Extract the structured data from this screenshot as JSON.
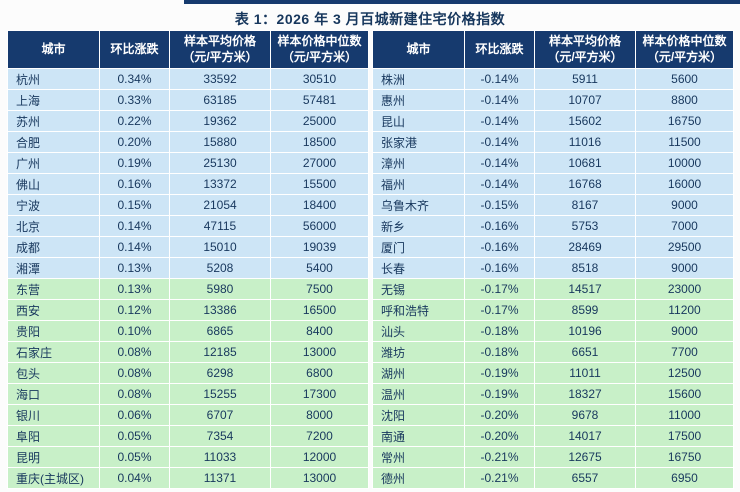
{
  "title": "表 1：2026 年 3 月百城新建住宅价格指数",
  "columns": {
    "city": "城市",
    "change": "环比涨跌",
    "avg_line1": "样本平均价格",
    "median_line1": "样本价格中位数",
    "unit": "（元/平方米）"
  },
  "left_rows": [
    {
      "city": "杭州",
      "change": "0.34%",
      "avg": "33592",
      "median": "30510"
    },
    {
      "city": "上海",
      "change": "0.33%",
      "avg": "63185",
      "median": "57481"
    },
    {
      "city": "苏州",
      "change": "0.22%",
      "avg": "19362",
      "median": "25000"
    },
    {
      "city": "合肥",
      "change": "0.20%",
      "avg": "15880",
      "median": "18500"
    },
    {
      "city": "广州",
      "change": "0.19%",
      "avg": "25130",
      "median": "27000"
    },
    {
      "city": "佛山",
      "change": "0.16%",
      "avg": "13372",
      "median": "15500"
    },
    {
      "city": "宁波",
      "change": "0.15%",
      "avg": "21054",
      "median": "18400"
    },
    {
      "city": "北京",
      "change": "0.14%",
      "avg": "47115",
      "median": "56000"
    },
    {
      "city": "成都",
      "change": "0.14%",
      "avg": "15010",
      "median": "19039"
    },
    {
      "city": "湘潭",
      "change": "0.13%",
      "avg": "5208",
      "median": "5400"
    },
    {
      "city": "东营",
      "change": "0.13%",
      "avg": "5980",
      "median": "7500"
    },
    {
      "city": "西安",
      "change": "0.12%",
      "avg": "13386",
      "median": "16500"
    },
    {
      "city": "贵阳",
      "change": "0.10%",
      "avg": "6865",
      "median": "8400"
    },
    {
      "city": "石家庄",
      "change": "0.08%",
      "avg": "12185",
      "median": "13000"
    },
    {
      "city": "包头",
      "change": "0.08%",
      "avg": "6298",
      "median": "6800"
    },
    {
      "city": "海口",
      "change": "0.08%",
      "avg": "15255",
      "median": "17300"
    },
    {
      "city": "银川",
      "change": "0.06%",
      "avg": "6707",
      "median": "8000"
    },
    {
      "city": "阜阳",
      "change": "0.05%",
      "avg": "7354",
      "median": "7200"
    },
    {
      "city": "昆明",
      "change": "0.05%",
      "avg": "11033",
      "median": "12000"
    },
    {
      "city": "重庆(主城区)",
      "change": "0.04%",
      "avg": "11371",
      "median": "13000"
    }
  ],
  "right_rows": [
    {
      "city": "株洲",
      "change": "-0.14%",
      "avg": "5911",
      "median": "5600"
    },
    {
      "city": "惠州",
      "change": "-0.14%",
      "avg": "10707",
      "median": "8800"
    },
    {
      "city": "昆山",
      "change": "-0.14%",
      "avg": "15602",
      "median": "16750"
    },
    {
      "city": "张家港",
      "change": "-0.14%",
      "avg": "11016",
      "median": "11500"
    },
    {
      "city": "漳州",
      "change": "-0.14%",
      "avg": "10681",
      "median": "10000"
    },
    {
      "city": "福州",
      "change": "-0.14%",
      "avg": "16768",
      "median": "16000"
    },
    {
      "city": "乌鲁木齐",
      "change": "-0.15%",
      "avg": "8167",
      "median": "9000"
    },
    {
      "city": "新乡",
      "change": "-0.16%",
      "avg": "5753",
      "median": "7000"
    },
    {
      "city": "厦门",
      "change": "-0.16%",
      "avg": "28469",
      "median": "29500"
    },
    {
      "city": "长春",
      "change": "-0.16%",
      "avg": "8518",
      "median": "9000"
    },
    {
      "city": "无锡",
      "change": "-0.17%",
      "avg": "14517",
      "median": "23000"
    },
    {
      "city": "呼和浩特",
      "change": "-0.17%",
      "avg": "8599",
      "median": "11200"
    },
    {
      "city": "汕头",
      "change": "-0.18%",
      "avg": "10196",
      "median": "9000"
    },
    {
      "city": "潍坊",
      "change": "-0.18%",
      "avg": "6651",
      "median": "7700"
    },
    {
      "city": "湖州",
      "change": "-0.19%",
      "avg": "11011",
      "median": "12500"
    },
    {
      "city": "温州",
      "change": "-0.19%",
      "avg": "18327",
      "median": "15600"
    },
    {
      "city": "沈阳",
      "change": "-0.20%",
      "avg": "9678",
      "median": "11000"
    },
    {
      "city": "南通",
      "change": "-0.20%",
      "avg": "14017",
      "median": "17500"
    },
    {
      "city": "常州",
      "change": "-0.21%",
      "avg": "12675",
      "median": "16750"
    },
    {
      "city": "德州",
      "change": "-0.21%",
      "avg": "6557",
      "median": "6950"
    }
  ],
  "colors": {
    "header_bg": "#163A6E",
    "row_blue": "#CDE5F6",
    "row_green": "#C8F0C8",
    "text": "#17375D"
  }
}
